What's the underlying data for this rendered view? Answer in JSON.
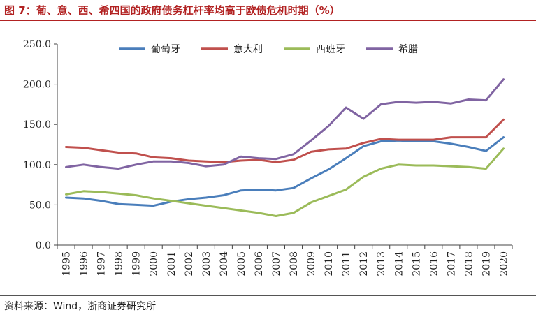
{
  "title": "图 7：葡、意、西、希四国的政府债务杠杆率均高于欧债危机时期（%）",
  "source": "资料来源：Wind，浙商证券研究所",
  "chart_data": {
    "type": "line",
    "title": "图 7：葡、意、西、希四国的政府债务杠杆率均高于欧债危机时期（%）",
    "xlabel": "",
    "ylabel": "",
    "ylim": [
      0,
      250
    ],
    "yticks": [
      "0.0",
      "50.0",
      "100.0",
      "150.0",
      "200.0",
      "250.0"
    ],
    "categories": [
      "1995",
      "1996",
      "1997",
      "1998",
      "1999",
      "2000",
      "2001",
      "2002",
      "2003",
      "2004",
      "2005",
      "2006",
      "2007",
      "2008",
      "2009",
      "2010",
      "2011",
      "2012",
      "2013",
      "2014",
      "2015",
      "2016",
      "2017",
      "2018",
      "2019",
      "2020"
    ],
    "legend_position": "top",
    "series": [
      {
        "name": "葡萄牙",
        "color": "#4a7ebb",
        "values": [
          59,
          58,
          55,
          51,
          50,
          49,
          54,
          57,
          59,
          62,
          68,
          69,
          68,
          71,
          83,
          94,
          108,
          123,
          129,
          130,
          129,
          129,
          126,
          122,
          117,
          134
        ]
      },
      {
        "name": "意大利",
        "color": "#c0504d",
        "values": [
          122,
          121,
          118,
          115,
          114,
          109,
          108,
          105,
          104,
          103,
          105,
          106,
          103,
          106,
          116,
          119,
          120,
          127,
          132,
          131,
          131,
          131,
          134,
          134,
          134,
          156
        ]
      },
      {
        "name": "西班牙",
        "color": "#9bbb59",
        "values": [
          63,
          67,
          66,
          64,
          62,
          58,
          55,
          52,
          49,
          46,
          43,
          40,
          36,
          40,
          53,
          61,
          69,
          85,
          95,
          100,
          99,
          99,
          98,
          97,
          95,
          120
        ]
      },
      {
        "name": "希腊",
        "color": "#8064a2",
        "values": [
          97,
          100,
          97,
          95,
          100,
          104,
          104,
          102,
          98,
          100,
          110,
          108,
          107,
          113,
          130,
          148,
          171,
          157,
          175,
          178,
          177,
          178,
          176,
          181,
          180,
          206
        ]
      }
    ]
  }
}
